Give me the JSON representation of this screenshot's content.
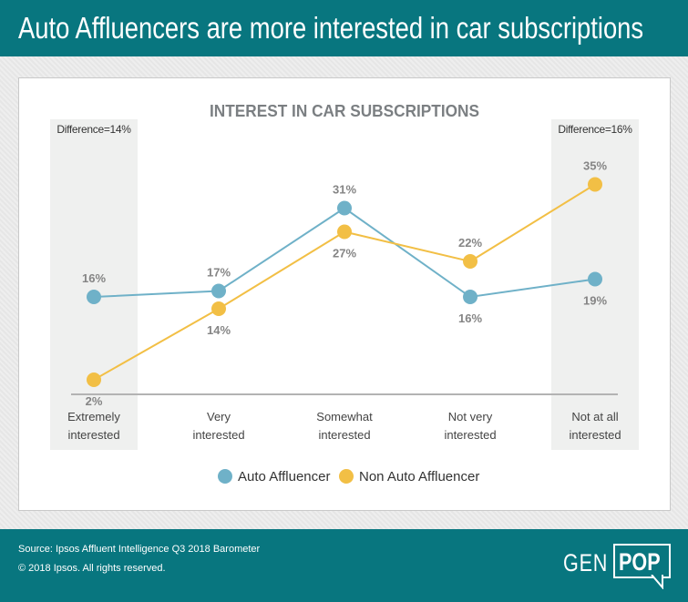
{
  "header": {
    "title": "Auto Affluencers are more interested in car subscriptions"
  },
  "chart_data": {
    "type": "line",
    "title": "INTEREST IN CAR SUBSCRIPTIONS",
    "categories": [
      "Extremely interested",
      "Very interested",
      "Somewhat interested",
      "Not very interested",
      "Not at all interested"
    ],
    "category_lines": [
      [
        "Extremely",
        "interested"
      ],
      [
        "Very",
        "interested"
      ],
      [
        "Somewhat",
        "interested"
      ],
      [
        "Not very",
        "interested"
      ],
      [
        "Not at all",
        "interested"
      ]
    ],
    "series": [
      {
        "name": "Auto Affluencer",
        "color": "#6fb1c8",
        "values": [
          16,
          17,
          31,
          16,
          19
        ],
        "labels": [
          "16%",
          "17%",
          "31%",
          "16%",
          "19%"
        ]
      },
      {
        "name": "Non Auto Affluencer",
        "color": "#f2bf45",
        "values": [
          2,
          14,
          27,
          22,
          35
        ],
        "labels": [
          "2%",
          "14%",
          "27%",
          "22%",
          "35%"
        ]
      }
    ],
    "annotations": [
      {
        "category": "Extremely interested",
        "text": "Difference=14%"
      },
      {
        "category": "Not at all interested",
        "text": "Difference=16%"
      }
    ],
    "legend": "bottom",
    "grid": false,
    "ylim": [
      0,
      40
    ]
  },
  "footer": {
    "source": "Source:  Ipsos Affluent Intelligence Q3 2018 Barometer",
    "copyright": "© 2018 Ipsos. All rights reserved.",
    "logo_gen": "GEN",
    "logo_pop": "POP"
  }
}
